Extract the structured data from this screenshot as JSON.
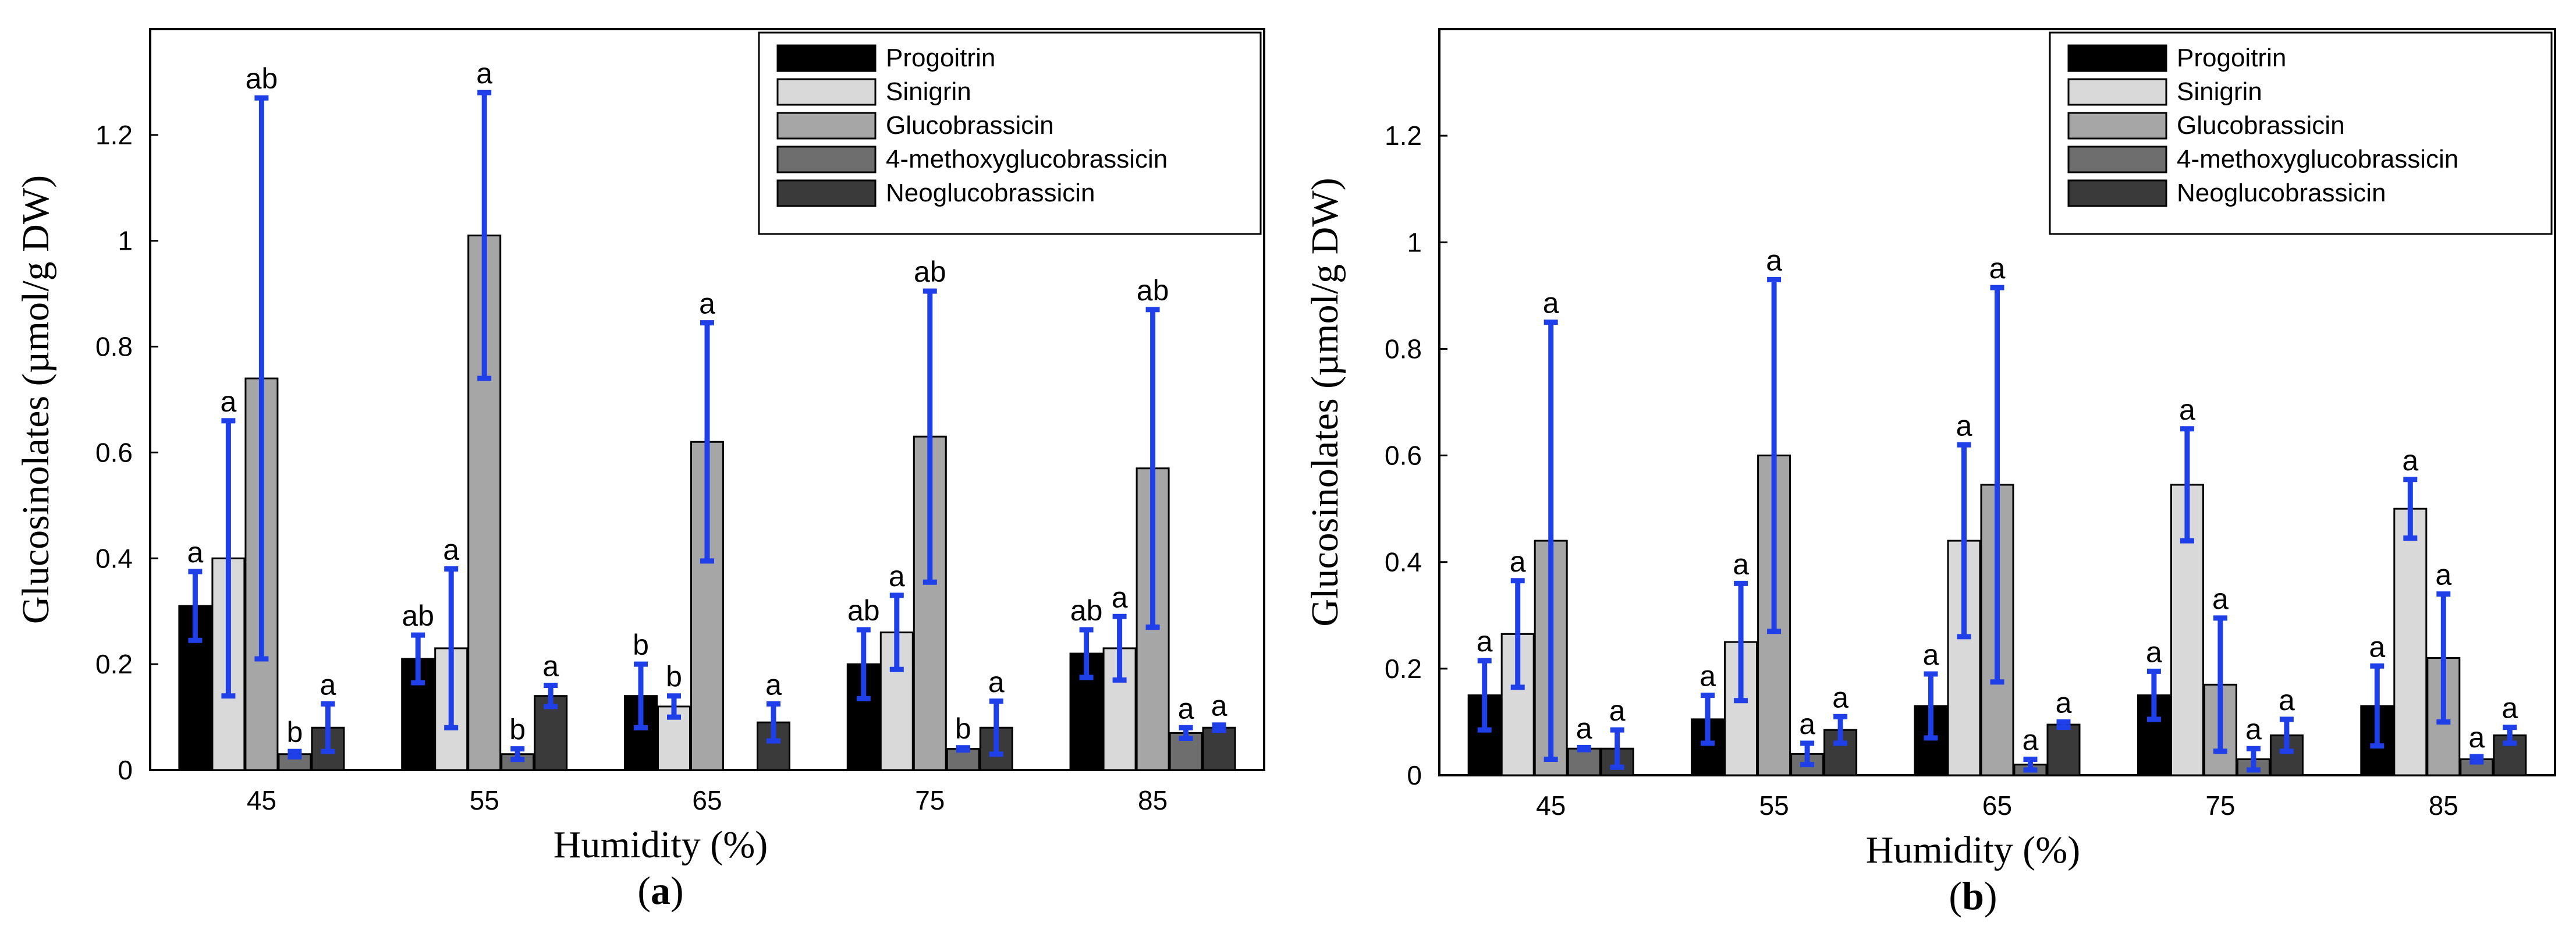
{
  "chart_data": [
    {
      "type": "bar",
      "panel_label": "a",
      "xlabel": "Humidity (%)",
      "ylabel": "Glucosinolates (µmol/g DW)",
      "ylim": [
        0,
        1.4
      ],
      "yticks": [
        "0",
        "0.2",
        "0.4",
        "0.6",
        "0.8",
        "1",
        "1.2"
      ],
      "categories": [
        "45",
        "55",
        "65",
        "75",
        "85"
      ],
      "legend_position": "top-right",
      "series": [
        {
          "name": "Progoitrin",
          "color": "#000000",
          "values": [
            0.31,
            0.21,
            0.14,
            0.2,
            0.22
          ],
          "errors": [
            0.065,
            0.045,
            0.06,
            0.065,
            0.045
          ],
          "labels": [
            "a",
            "ab",
            "b",
            "ab",
            "ab"
          ]
        },
        {
          "name": "Sinigrin",
          "color": "#d9d9d9",
          "values": [
            0.4,
            0.23,
            0.12,
            0.26,
            0.23
          ],
          "errors": [
            0.26,
            0.15,
            0.02,
            0.07,
            0.06
          ],
          "labels": [
            "a",
            "a",
            "b",
            "a",
            "a"
          ]
        },
        {
          "name": "Glucobrassicin",
          "color": "#a6a6a6",
          "values": [
            0.74,
            1.01,
            0.62,
            0.63,
            0.57
          ],
          "errors": [
            0.53,
            0.27,
            0.225,
            0.275,
            0.3
          ],
          "labels": [
            "ab",
            "a",
            "a",
            "ab",
            "ab"
          ]
        },
        {
          "name": "4-methoxyglucobrassicin",
          "color": "#6e6e6e",
          "values": [
            0.03,
            0.03,
            0.0,
            0.04,
            0.07
          ],
          "errors": [
            0.005,
            0.01,
            0.0,
            0.002,
            0.01
          ],
          "labels": [
            "b",
            "b",
            "",
            "b",
            "a"
          ]
        },
        {
          "name": "Neoglucobrassicin",
          "color": "#3a3a3a",
          "values": [
            0.08,
            0.14,
            0.09,
            0.08,
            0.08
          ],
          "errors": [
            0.045,
            0.02,
            0.035,
            0.05,
            0.005
          ],
          "labels": [
            "a",
            "a",
            "a",
            "a",
            "a"
          ]
        }
      ]
    },
    {
      "type": "bar",
      "panel_label": "b",
      "xlabel": "Humidity (%)",
      "ylabel": "Glucosinolates (µmol/g DW)",
      "ylim": [
        0,
        1.4
      ],
      "yticks": [
        "0",
        "0.2",
        "0.4",
        "0.6",
        "0.8",
        "1",
        "1.2"
      ],
      "categories": [
        "45",
        "55",
        "65",
        "75",
        "85"
      ],
      "legend_position": "top-right",
      "series": [
        {
          "name": "Progoitrin",
          "color": "#000000",
          "values": [
            0.15,
            0.105,
            0.13,
            0.15,
            0.13
          ],
          "errors": [
            0.065,
            0.045,
            0.06,
            0.045,
            0.075
          ],
          "labels": [
            "a",
            "a",
            "a",
            "a",
            "a"
          ]
        },
        {
          "name": "Sinigrin",
          "color": "#d9d9d9",
          "values": [
            0.265,
            0.25,
            0.44,
            0.545,
            0.5
          ],
          "errors": [
            0.1,
            0.11,
            0.18,
            0.105,
            0.055
          ],
          "labels": [
            "a",
            "a",
            "a",
            "a",
            "a"
          ]
        },
        {
          "name": "Glucobrassicin",
          "color": "#a6a6a6",
          "values": [
            0.44,
            0.6,
            0.545,
            0.17,
            0.22
          ],
          "errors": [
            0.41,
            0.33,
            0.37,
            0.125,
            0.12
          ],
          "labels": [
            "a",
            "a",
            "a",
            "a",
            "a"
          ]
        },
        {
          "name": "4-methoxyglucobrassicin",
          "color": "#6e6e6e",
          "values": [
            0.05,
            0.04,
            0.02,
            0.03,
            0.03
          ],
          "errors": [
            0.002,
            0.02,
            0.01,
            0.02,
            0.005
          ],
          "labels": [
            "a",
            "a",
            "a",
            "a",
            "a"
          ]
        },
        {
          "name": "Neoglucobrassicin",
          "color": "#3a3a3a",
          "values": [
            0.05,
            0.085,
            0.095,
            0.075,
            0.075
          ],
          "errors": [
            0.035,
            0.025,
            0.005,
            0.03,
            0.015
          ],
          "labels": [
            "a",
            "a",
            "a",
            "a",
            "a"
          ]
        }
      ]
    }
  ],
  "colors": {
    "error_bar": "#1f3fe8",
    "axis": "#000000"
  }
}
